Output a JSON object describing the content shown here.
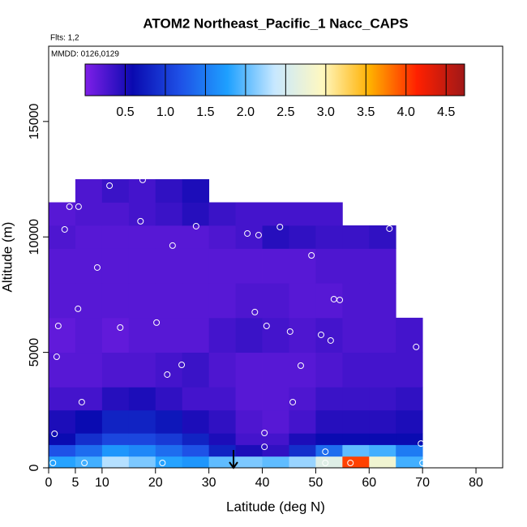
{
  "chart_data": {
    "type": "heatmap",
    "title": "ATOM2 Northeast_Pacific_1 Nacc_CAPS",
    "annotations": [
      "Flts: 1,2",
      "MMDD: 0126,0129"
    ],
    "x_label": "Latitude (deg N)",
    "y_label": "Altitude (m)",
    "xlim": [
      0,
      85
    ],
    "ylim": [
      0,
      18260
    ],
    "xticks": [
      0,
      5,
      10,
      20,
      30,
      40,
      50,
      60,
      70,
      80
    ],
    "yticks": [
      0,
      5000,
      10000,
      15000
    ],
    "x_edges": [
      0,
      5,
      10,
      15,
      20,
      25,
      30,
      35,
      40,
      45,
      50,
      55,
      60,
      65,
      70
    ],
    "y_edges": [
      0,
      500,
      1000,
      1500,
      2500,
      3500,
      5000,
      6500,
      8000,
      9500,
      10500,
      11500,
      12500
    ],
    "values": [
      [
        1.8,
        1.9,
        2.3,
        2.1,
        1.8,
        1.7,
        2.0,
        2.1,
        2.0,
        2.2,
        2.6,
        4.0,
        2.8,
        1.9
      ],
      [
        1.2,
        1.4,
        1.7,
        1.6,
        1.4,
        1.2,
        0.8,
        0.5,
        0.4,
        0.9,
        1.4,
        2.0,
        1.9,
        1.5
      ],
      [
        0.6,
        0.9,
        1.1,
        1.1,
        1.0,
        0.8,
        0.5,
        0.3,
        0.3,
        0.5,
        0.6,
        0.6,
        0.6,
        0.6
      ],
      [
        0.5,
        0.6,
        0.8,
        0.8,
        0.7,
        0.5,
        0.4,
        0.25,
        0.2,
        0.3,
        0.45,
        0.45,
        0.45,
        0.5
      ],
      [
        0.3,
        0.3,
        0.45,
        0.5,
        0.4,
        0.3,
        0.3,
        0.2,
        0.2,
        0.25,
        0.35,
        0.35,
        0.35,
        0.4
      ],
      [
        0.2,
        0.2,
        0.25,
        0.25,
        0.3,
        0.35,
        0.25,
        0.2,
        0.2,
        0.2,
        0.25,
        0.3,
        0.3,
        0.3
      ],
      [
        0.15,
        0.2,
        0.15,
        0.2,
        0.2,
        0.2,
        0.3,
        0.35,
        0.3,
        0.25,
        0.3,
        0.25,
        0.25,
        0.3
      ],
      [
        0.2,
        0.2,
        0.2,
        0.2,
        0.2,
        0.2,
        0.2,
        0.25,
        0.25,
        0.2,
        0.2,
        0.25,
        0.25,
        null
      ],
      [
        0.2,
        0.2,
        0.2,
        0.2,
        0.2,
        0.2,
        0.2,
        0.2,
        0.2,
        0.2,
        0.25,
        0.25,
        0.25,
        null
      ],
      [
        0.25,
        0.2,
        0.2,
        0.2,
        0.2,
        0.2,
        0.25,
        0.3,
        0.45,
        0.4,
        0.35,
        0.35,
        0.4,
        null
      ],
      [
        0.2,
        0.25,
        0.25,
        0.3,
        0.35,
        0.45,
        0.35,
        0.3,
        0.3,
        0.3,
        0.3,
        null,
        null,
        null
      ],
      [
        null,
        0.25,
        0.35,
        0.3,
        0.4,
        0.5,
        null,
        null,
        null,
        null,
        null,
        null,
        null,
        null
      ]
    ],
    "colormap": [
      "#7f1fe8",
      "#0a0ab0",
      "#1e50e6",
      "#1ea0ff",
      "#c8e8ff",
      "#fff8c0",
      "#ffb000",
      "#ff2000",
      "#a01818"
    ],
    "clim": [
      0,
      4.73
    ],
    "colorbar_ticks": [
      0.5,
      {
        "value": 1,
        "label": "1.0"
      },
      1.5,
      {
        "value": 2,
        "label": "2.0"
      },
      2.5,
      {
        "value": 3,
        "label": "3.0"
      },
      3.5,
      {
        "value": 4,
        "label": "4.0"
      },
      4.5
    ],
    "points": {
      "color": "#ffffff",
      "x": [
        0.8,
        6.7,
        21.3,
        51.8,
        56.5,
        70,
        51.8,
        40.4,
        69.7,
        1.1,
        40.4,
        6.2,
        45.7,
        22.2,
        24.9,
        47.2,
        1.5,
        68.8,
        52.8,
        51,
        45.2,
        13.4,
        40.8,
        1.8,
        20.2,
        38.6,
        5.5,
        53.4,
        54.5,
        9.1,
        49.2,
        23.2,
        37.2,
        39.3,
        17.2,
        27.6,
        43.3,
        63.8,
        3,
        3.9,
        5.6,
        11.4,
        17.6
      ],
      "y": [
        211,
        211,
        211,
        211,
        211,
        211,
        700,
        910,
        1050,
        1475,
        1510,
        2845,
        2845,
        4040,
        4460,
        4425,
        4810,
        5235,
        5515,
        5760,
        5900,
        6075,
        6145,
        6145,
        6290,
        6745,
        6885,
        7305,
        7270,
        8675,
        9200,
        9625,
        10150,
        10080,
        10680,
        10465,
        10430,
        10360,
        10325,
        11310,
        11310,
        12220,
        12470
      ]
    }
  }
}
